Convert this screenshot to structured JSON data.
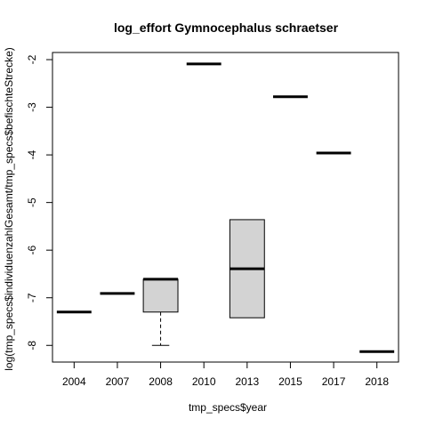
{
  "chart_data": {
    "type": "box",
    "title": "log_effort Gymnocephalus schraetser",
    "xlabel": "tmp_specs$year",
    "ylabel": "log(tmp_specs$individuenzahlGesamt/tmp_specs$befischteStrecke)",
    "categories": [
      "2004",
      "2007",
      "2008",
      "2010",
      "2013",
      "2015",
      "2017",
      "2018"
    ],
    "boxes": [
      {
        "category": "2004",
        "min": -7.3,
        "q1": -7.3,
        "median": -7.3,
        "q3": -7.3,
        "max": -7.3
      },
      {
        "category": "2007",
        "min": -6.91,
        "q1": -6.91,
        "median": -6.91,
        "q3": -6.91,
        "max": -6.91
      },
      {
        "category": "2008",
        "min": -8.0,
        "q1": -7.3,
        "median": -6.61,
        "q3": -6.61,
        "max": -6.61
      },
      {
        "category": "2010",
        "min": -2.09,
        "q1": -2.09,
        "median": -2.09,
        "q3": -2.09,
        "max": -2.09
      },
      {
        "category": "2013",
        "min": -7.42,
        "q1": -7.42,
        "median": -6.39,
        "q3": -5.36,
        "max": -5.36
      },
      {
        "category": "2015",
        "min": -2.78,
        "q1": -2.78,
        "median": -2.78,
        "q3": -2.78,
        "max": -2.78
      },
      {
        "category": "2017",
        "min": -3.96,
        "q1": -3.96,
        "median": -3.96,
        "q3": -3.96,
        "max": -3.96
      },
      {
        "category": "2018",
        "min": -8.13,
        "q1": -8.13,
        "median": -8.13,
        "q3": -8.13,
        "max": -8.13
      }
    ],
    "yticks": [
      -8,
      -7,
      -6,
      -5,
      -4,
      -3,
      -2
    ],
    "ylim": [
      -8.35,
      -1.85
    ],
    "box_fill": "#d3d3d3",
    "grid": false
  }
}
